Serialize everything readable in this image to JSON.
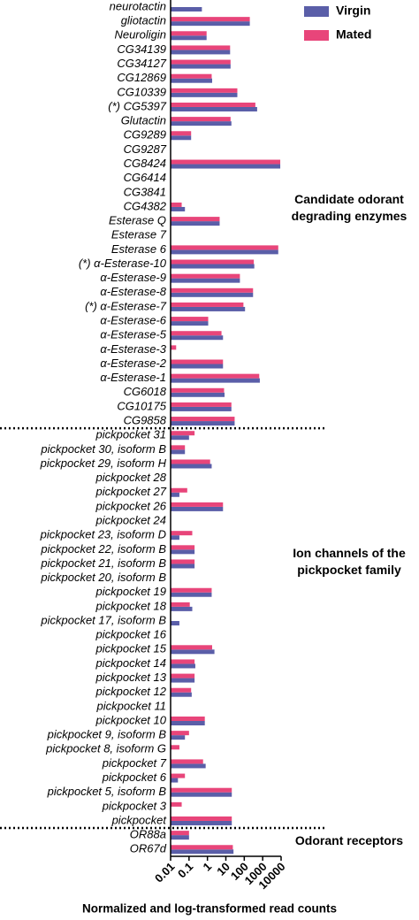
{
  "chart_data": {
    "type": "hbar",
    "x_label": "Normalized and log-transformed read counts",
    "log_x": true,
    "xlim": [
      0.01,
      10000
    ],
    "xticks": [
      0.01,
      0.1,
      1,
      10,
      100,
      1000,
      10000
    ],
    "legend": "top-right",
    "annotations": [
      "Candidate odorant degrading enzymes",
      "Ion channels of the pickpocket family",
      "Odorant receptors"
    ],
    "categories": [
      "neurotactin",
      "gliotactin",
      "Neuroligin",
      "CG34139",
      "CG34127",
      "CG12869",
      "CG10339",
      "(*) CG5397",
      "Glutactin",
      "CG9289",
      "CG9287",
      "CG8424",
      "CG6414",
      "CG3841",
      "CG4382",
      "Esterase Q",
      "Esterase 7",
      "Esterase 6",
      "(*) α-Esterase-10",
      "α-Esterase-9",
      "α-Esterase-8",
      "(*) α-Esterase-7",
      "α-Esterase-6",
      "α-Esterase-5",
      "α-Esterase-3",
      "α-Esterase-2",
      "α-Esterase-1",
      "CG6018",
      "CG10175",
      "CG9858",
      "pickpocket 31",
      "pickpocket 30, isoform B",
      "pickpocket 29, isoform H",
      "pickpocket 28",
      "pickpocket 27",
      "pickpocket 26",
      "pickpocket 24",
      "pickpocket 23, isoform D",
      "pickpocket 22, isoform B",
      "pickpocket 21, isoform B",
      "pickpocket 20, isoform B",
      "pickpocket 19",
      "pickpocket 18",
      "pickpocket 17, isoform B",
      "pickpocket 16",
      "pickpocket 15",
      "pickpocket 14",
      "pickpocket 13",
      "pickpocket 12",
      "pickpocket 11",
      "pickpocket 10",
      "pickpocket 9, isoform B",
      "pickpocket 8, isoform G",
      "pickpocket 7",
      "pickpocket 6",
      "pickpocket 5, isoform B",
      "pickpocket 3",
      "pickpocket",
      "OR88a",
      "OR67d"
    ],
    "series": [
      {
        "name": "Virgin",
        "color": "#5a5ea8",
        "values": [
          0.5,
          200,
          0.9,
          17,
          18,
          1.8,
          42,
          500,
          20,
          0.13,
          null,
          9000,
          null,
          null,
          0.06,
          4.6,
          null,
          7000,
          350,
          58,
          300,
          110,
          1.1,
          7,
          null,
          7,
          700,
          8.5,
          20,
          30,
          0.1,
          0.06,
          1.7,
          null,
          0.03,
          7,
          null,
          0.03,
          0.2,
          0.2,
          null,
          1.7,
          0.15,
          0.03,
          null,
          2.4,
          0.22,
          0.2,
          0.14,
          null,
          0.72,
          0.06,
          null,
          0.8,
          0.025,
          21,
          null,
          21,
          0.1,
          26
        ]
      },
      {
        "name": "Mated",
        "color": "#e8457a",
        "values": [
          null,
          200,
          0.9,
          17,
          18,
          1.7,
          42,
          400,
          18,
          0.13,
          null,
          9000,
          null,
          null,
          0.04,
          4.6,
          null,
          7000,
          330,
          58,
          300,
          90,
          1.1,
          5.8,
          0.02,
          7,
          650,
          8,
          20,
          30,
          0.2,
          0.06,
          1.4,
          null,
          0.08,
          7,
          null,
          0.15,
          0.2,
          0.2,
          null,
          1.7,
          0.11,
          null,
          null,
          1.8,
          0.2,
          0.2,
          0.13,
          null,
          0.72,
          0.1,
          0.03,
          0.58,
          0.06,
          21,
          0.04,
          21,
          0.1,
          24
        ]
      }
    ]
  }
}
